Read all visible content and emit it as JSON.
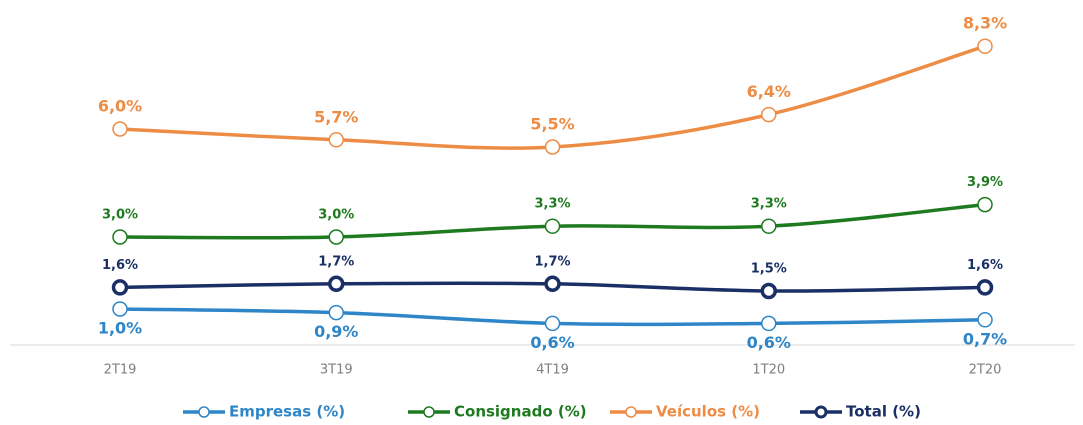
{
  "chart_data": {
    "type": "line",
    "categories": [
      "2T19",
      "3T19",
      "4T19",
      "1T20",
      "2T20"
    ],
    "ylim": [
      0,
      9
    ],
    "series": [
      {
        "name": "Empresas (%)",
        "color": "#2e86c8",
        "values": [
          1.0,
          0.9,
          0.6,
          0.6,
          0.7
        ],
        "value_labels": [
          "1,0%",
          "0,9%",
          "0,6%",
          "0,6%",
          "0,7%"
        ]
      },
      {
        "name": "Consignado (%)",
        "color": "#1e7a1e",
        "values": [
          3.0,
          3.0,
          3.3,
          3.3,
          3.9
        ],
        "value_labels": [
          "3,0%",
          "3,0%",
          "3,3%",
          "3,3%",
          "3,9%"
        ]
      },
      {
        "name": "Veículos (%)",
        "color": "#ed8c45",
        "values": [
          6.0,
          5.7,
          5.5,
          6.4,
          8.3
        ],
        "value_labels": [
          "6,0%",
          "5,7%",
          "5,5%",
          "6,4%",
          "8,3%"
        ]
      },
      {
        "name": "Total (%)",
        "color": "#1a2f66",
        "values": [
          1.6,
          1.7,
          1.7,
          1.5,
          1.6
        ],
        "value_labels": [
          "1,6%",
          "1,7%",
          "1,7%",
          "1,5%",
          "1,6%"
        ]
      }
    ],
    "legend": "bottom"
  }
}
